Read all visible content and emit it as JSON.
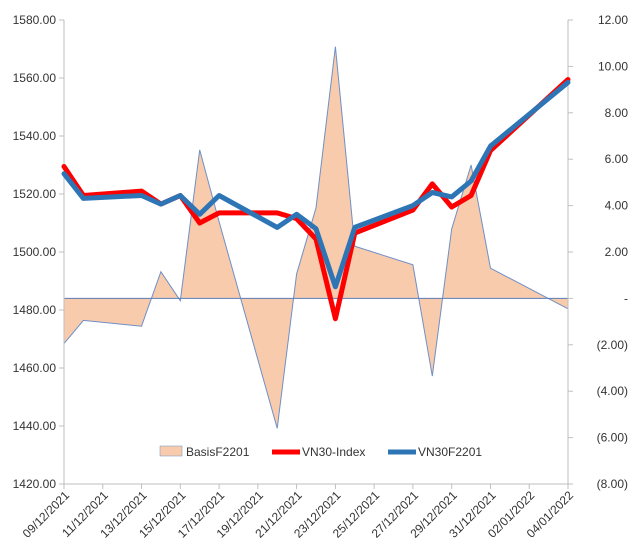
{
  "chart_data": {
    "type": "area+line",
    "x_labels": [
      "09/12/2021",
      "11/12/2021",
      "13/12/2021",
      "15/12/2021",
      "17/12/2021",
      "19/12/2021",
      "21/12/2021",
      "23/12/2021",
      "25/12/2021",
      "27/12/2021",
      "29/12/2021",
      "31/12/2021",
      "02/01/2022",
      "04/01/2022"
    ],
    "y_left": {
      "min": 1420,
      "max": 1580,
      "step": 20,
      "tick_labels": [
        "1420.00",
        "1440.00",
        "1460.00",
        "1480.00",
        "1500.00",
        "1520.00",
        "1540.00",
        "1560.00",
        "1580.00"
      ]
    },
    "y_right": {
      "min": -8,
      "max": 12,
      "step": 2,
      "tick_labels": [
        "(8.00)",
        "(6.00)",
        "(4.00)",
        "(2.00)",
        "-",
        "2.00",
        "4.00",
        "6.00",
        "8.00",
        "10.00",
        "12.00"
      ]
    },
    "series": [
      {
        "name": "BasisF2201",
        "kind": "area",
        "axis": "right",
        "color": "#F8CBAD",
        "stroke": "#6F8FC6",
        "points": [
          {
            "x": "09/12/2021",
            "y": -1.95
          },
          {
            "x": "10/12/2021",
            "y": -0.95
          },
          {
            "x": "13/12/2021",
            "y": -1.2
          },
          {
            "x": "14/12/2021",
            "y": 1.15
          },
          {
            "x": "15/12/2021",
            "y": -0.1
          },
          {
            "x": "16/12/2021",
            "y": 6.4
          },
          {
            "x": "17/12/2021",
            "y": 3.3
          },
          {
            "x": "20/12/2021",
            "y": -5.6
          },
          {
            "x": "21/12/2021",
            "y": 1.05
          },
          {
            "x": "22/12/2021",
            "y": 3.9
          },
          {
            "x": "23/12/2021",
            "y": 10.85
          },
          {
            "x": "24/12/2021",
            "y": 2.25
          },
          {
            "x": "27/12/2021",
            "y": 1.45
          },
          {
            "x": "28/12/2021",
            "y": -3.35
          },
          {
            "x": "29/12/2021",
            "y": 3.0
          },
          {
            "x": "30/12/2021",
            "y": 5.75
          },
          {
            "x": "31/12/2021",
            "y": 1.3
          },
          {
            "x": "04/01/2022",
            "y": -0.45
          }
        ]
      },
      {
        "name": "VN30-Index",
        "kind": "line",
        "axis": "left",
        "color": "#FF0000",
        "points": [
          {
            "x": "09/12/2021",
            "y": 1529.5
          },
          {
            "x": "10/12/2021",
            "y": 1519.5
          },
          {
            "x": "13/12/2021",
            "y": 1521.0
          },
          {
            "x": "14/12/2021",
            "y": 1516.5
          },
          {
            "x": "15/12/2021",
            "y": 1519.5
          },
          {
            "x": "16/12/2021",
            "y": 1510.0
          },
          {
            "x": "17/12/2021",
            "y": 1513.5
          },
          {
            "x": "20/12/2021",
            "y": 1513.5
          },
          {
            "x": "21/12/2021",
            "y": 1511.5
          },
          {
            "x": "22/12/2021",
            "y": 1504.5
          },
          {
            "x": "23/12/2021",
            "y": 1477.0
          },
          {
            "x": "24/12/2021",
            "y": 1506.5
          },
          {
            "x": "27/12/2021",
            "y": 1514.5
          },
          {
            "x": "28/12/2021",
            "y": 1523.5
          },
          {
            "x": "29/12/2021",
            "y": 1515.5
          },
          {
            "x": "30/12/2021",
            "y": 1519.5
          },
          {
            "x": "31/12/2021",
            "y": 1535.0
          },
          {
            "x": "04/01/2022",
            "y": 1559.5
          }
        ]
      },
      {
        "name": "VN30F2201",
        "kind": "line",
        "axis": "left",
        "color": "#2E75B6",
        "points": [
          {
            "x": "09/12/2021",
            "y": 1527.0
          },
          {
            "x": "10/12/2021",
            "y": 1518.5
          },
          {
            "x": "13/12/2021",
            "y": 1519.5
          },
          {
            "x": "14/12/2021",
            "y": 1516.5
          },
          {
            "x": "15/12/2021",
            "y": 1519.5
          },
          {
            "x": "16/12/2021",
            "y": 1513.0
          },
          {
            "x": "17/12/2021",
            "y": 1519.5
          },
          {
            "x": "20/12/2021",
            "y": 1508.5
          },
          {
            "x": "21/12/2021",
            "y": 1513.0
          },
          {
            "x": "22/12/2021",
            "y": 1508.0
          },
          {
            "x": "23/12/2021",
            "y": 1488.0
          },
          {
            "x": "24/12/2021",
            "y": 1508.5
          },
          {
            "x": "27/12/2021",
            "y": 1516.0
          },
          {
            "x": "28/12/2021",
            "y": 1520.5
          },
          {
            "x": "29/12/2021",
            "y": 1519.0
          },
          {
            "x": "30/12/2021",
            "y": 1524.5
          },
          {
            "x": "31/12/2021",
            "y": 1536.5
          },
          {
            "x": "04/01/2022",
            "y": 1558.5
          }
        ]
      }
    ],
    "grid": false,
    "legend_position": "bottom",
    "title": "",
    "xlabel": "",
    "ylabel": ""
  }
}
